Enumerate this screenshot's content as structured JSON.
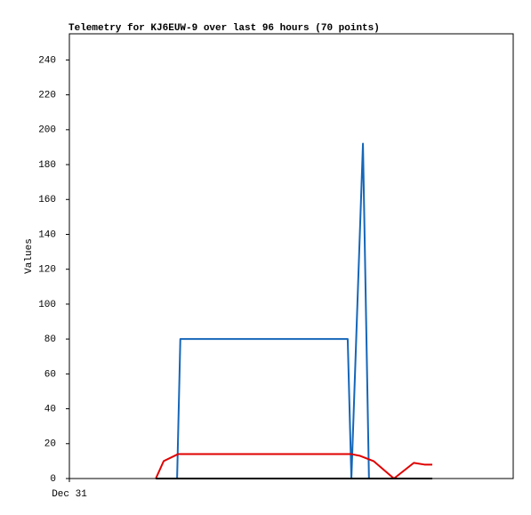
{
  "chart_data": {
    "type": "line",
    "title": "Telemetry for KJ6EUW-9 over last 96 hours (70 points)",
    "y_label": "Values",
    "xlim": [
      0,
      96
    ],
    "xticks": [
      {
        "value": 0,
        "label": "Dec 31"
      }
    ],
    "ylim": [
      0,
      255
    ],
    "yticks": [
      0,
      20,
      40,
      60,
      80,
      100,
      120,
      140,
      160,
      180,
      200,
      220,
      240
    ],
    "grid": false,
    "series": [
      {
        "color": "#1566b8",
        "x": [
          23.3,
          24.0,
          60.2,
          61.0,
          62.3,
          63.5,
          64.8
        ],
        "values": [
          0,
          80,
          80,
          0,
          100,
          192,
          0
        ]
      },
      {
        "color": "#e00000",
        "x": [
          18.7,
          20.4,
          23.5,
          61.0,
          62.9,
          65.8,
          70.2,
          74.5,
          76.8,
          78.5
        ],
        "values": [
          0,
          10,
          14,
          14,
          13,
          10,
          0,
          9,
          8,
          8
        ]
      },
      {
        "color": "#000000",
        "x": [
          18.7,
          78.5
        ],
        "values": [
          0,
          0
        ]
      }
    ]
  }
}
